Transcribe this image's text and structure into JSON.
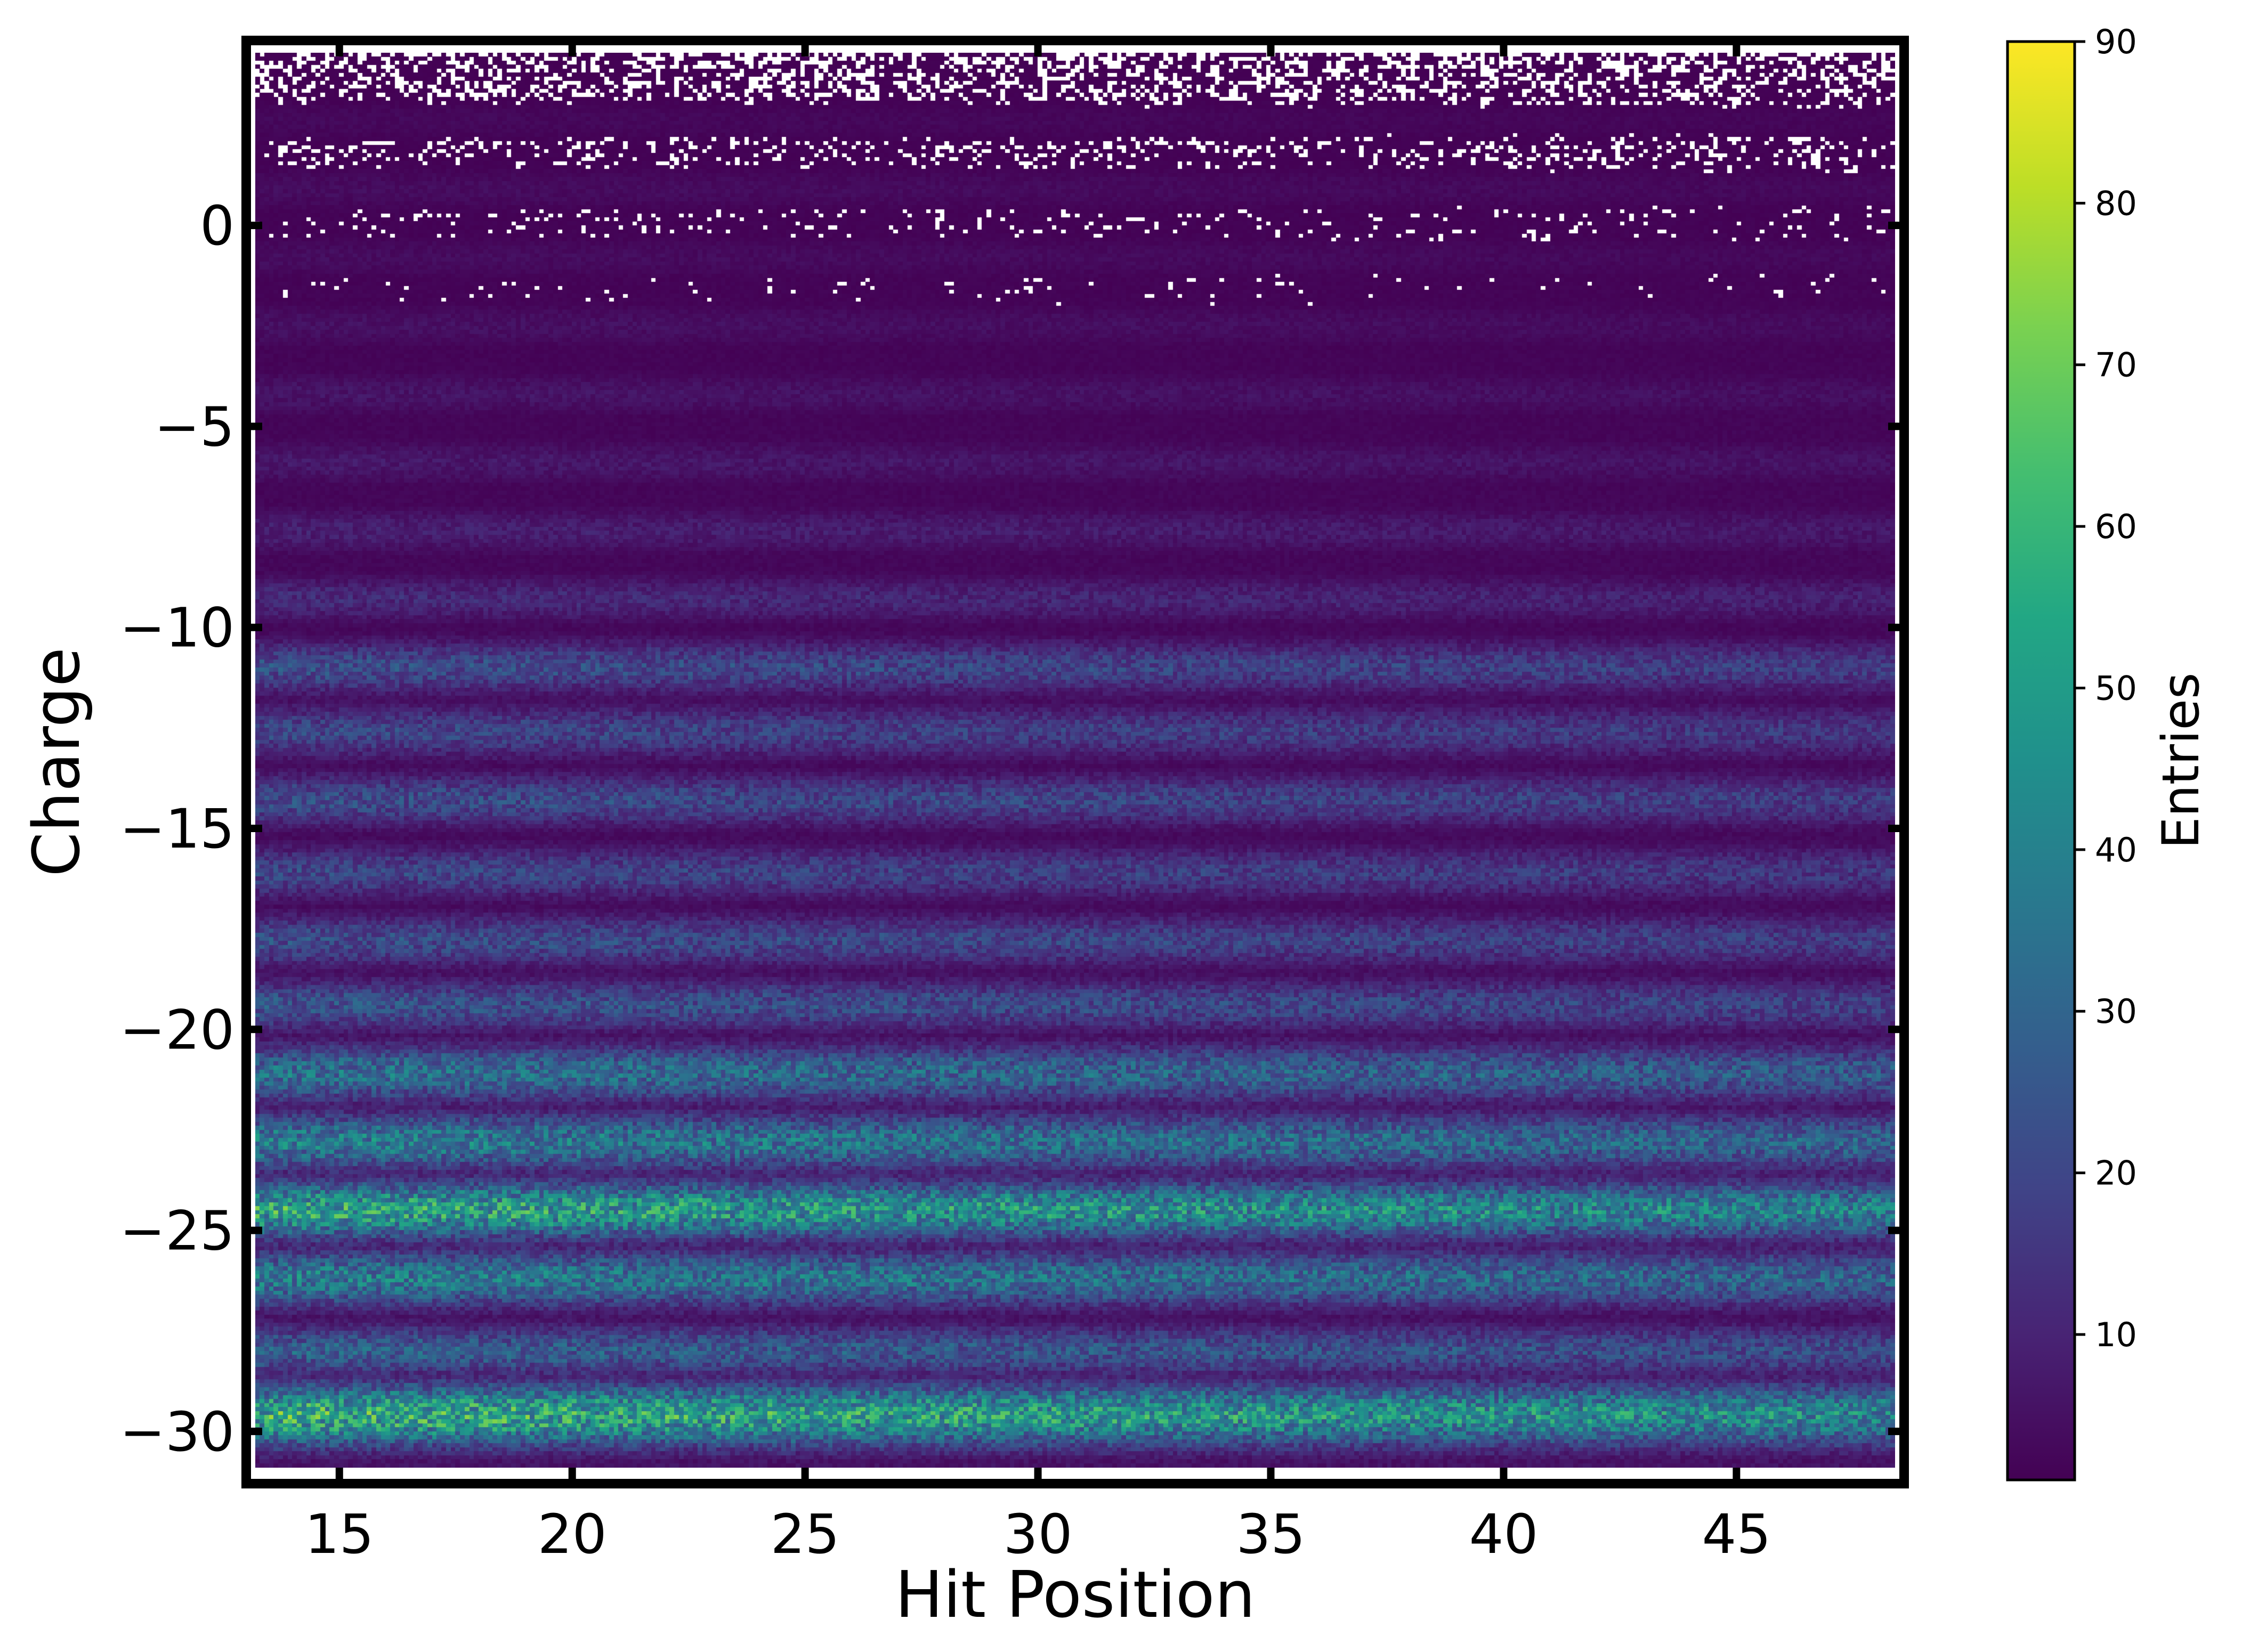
{
  "chart_data": {
    "type": "heatmap",
    "title": "",
    "xlabel": "Hit Position",
    "ylabel": "Charge",
    "xlim": [
      13.0,
      48.6
    ],
    "ylim": [
      -31.3,
      4.6
    ],
    "xticks": [
      15,
      20,
      25,
      30,
      35,
      40,
      45
    ],
    "xtick_labels": [
      "15",
      "20",
      "25",
      "30",
      "35",
      "40",
      "45"
    ],
    "yticks": [
      0,
      -5,
      -10,
      -15,
      -20,
      -25,
      -30
    ],
    "ytick_labels": [
      "0",
      "−5",
      "−10",
      "−15",
      "−20",
      "−25",
      "−30"
    ],
    "colorbar": {
      "label": "Entries",
      "range": [
        1,
        90
      ],
      "ticks": [
        10,
        20,
        30,
        40,
        50,
        60,
        70,
        80,
        90
      ],
      "tick_labels": [
        "10",
        "20",
        "30",
        "40",
        "50",
        "60",
        "70",
        "80",
        "90"
      ],
      "colormap": "viridis"
    },
    "grid": false,
    "data_region": {
      "x_range": [
        13.2,
        48.4
      ],
      "y_range": [
        -30.9,
        4.3
      ]
    },
    "bands": [
      {
        "charge": -29.6,
        "peak_entries": 55,
        "width": 0.55
      },
      {
        "charge": -28.0,
        "peak_entries": 28,
        "width": 0.45
      },
      {
        "charge": -26.2,
        "peak_entries": 38,
        "width": 0.5
      },
      {
        "charge": -24.5,
        "peak_entries": 52,
        "width": 0.5
      },
      {
        "charge": -22.8,
        "peak_entries": 38,
        "width": 0.5
      },
      {
        "charge": -21.1,
        "peak_entries": 34,
        "width": 0.5
      },
      {
        "charge": -19.4,
        "peak_entries": 24,
        "width": 0.45
      },
      {
        "charge": -17.8,
        "peak_entries": 22,
        "width": 0.45
      },
      {
        "charge": -16.1,
        "peak_entries": 20,
        "width": 0.45
      },
      {
        "charge": -14.3,
        "peak_entries": 22,
        "width": 0.45
      },
      {
        "charge": -12.6,
        "peak_entries": 20,
        "width": 0.45
      },
      {
        "charge": -11.0,
        "peak_entries": 22,
        "width": 0.45
      },
      {
        "charge": -9.3,
        "peak_entries": 12,
        "width": 0.4
      },
      {
        "charge": -7.6,
        "peak_entries": 9,
        "width": 0.4
      },
      {
        "charge": -5.9,
        "peak_entries": 7,
        "width": 0.4
      },
      {
        "charge": -4.2,
        "peak_entries": 6,
        "width": 0.4
      },
      {
        "charge": -2.5,
        "peak_entries": 5,
        "width": 0.4
      },
      {
        "charge": -0.8,
        "peak_entries": 4,
        "width": 0.4
      },
      {
        "charge": 0.9,
        "peak_entries": 4,
        "width": 0.4
      },
      {
        "charge": 2.6,
        "peak_entries": 3,
        "width": 0.4
      }
    ]
  }
}
